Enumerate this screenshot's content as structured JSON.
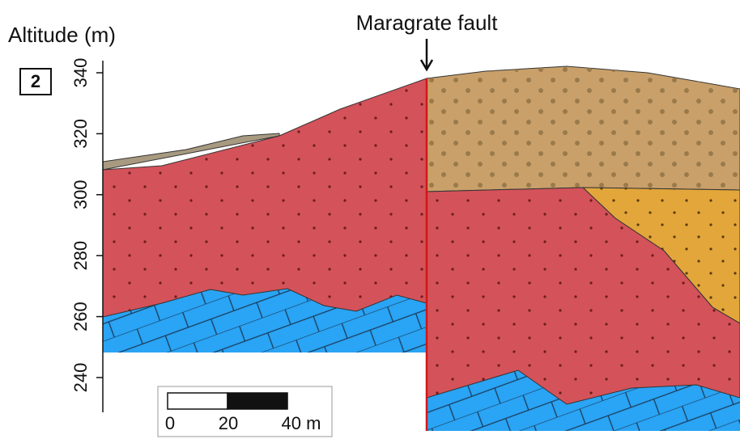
{
  "title": "Altitude (m)",
  "panel_label": "2",
  "fault_label": "Maragrate fault",
  "y_axis": {
    "ticks": [
      240,
      260,
      280,
      300,
      320,
      340
    ]
  },
  "scale_bar": {
    "labels": [
      "0",
      "20",
      "40 m"
    ]
  }
}
